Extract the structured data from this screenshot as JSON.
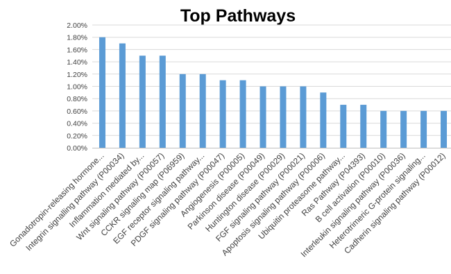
{
  "chart_data": {
    "type": "bar",
    "title": "Top Pathways",
    "xlabel": "",
    "ylabel": "",
    "ylim": [
      0,
      0.02
    ],
    "y_ticks": [
      "0.00%",
      "0.20%",
      "0.40%",
      "0.60%",
      "0.80%",
      "1.00%",
      "1.20%",
      "1.40%",
      "1.60%",
      "1.80%",
      "2.00%"
    ],
    "grid": true,
    "legend": "none",
    "bar_color": "#5b9bd5",
    "categories": [
      "Gonadotropin-releasing hormone...",
      "Integrin signalling pathway (P00034)",
      "Inflammation mediated by...",
      "Wnt signaling pathway (P00057)",
      "CCKR signaling map (P06959)",
      "EGF receptor signaling pathway...",
      "PDGF signaling pathway (P00047)",
      "Angiogenesis (P00005)",
      "Parkinson disease (P00049)",
      "Huntington disease (P00029)",
      "FGF signaling pathway (P00021)",
      "Apoptosis signaling pathway (P00006)",
      "Ubiquitin proteasome pathway...",
      "Ras Pathway (P04393)",
      "B cell activation (P00010)",
      "Interleukin signaling pathway (P00036)",
      "Heterotrimeric G-protein signaling...",
      "Cadherin signaling pathway (P00012)"
    ],
    "values": [
      0.018,
      0.017,
      0.015,
      0.015,
      0.012,
      0.012,
      0.011,
      0.011,
      0.01,
      0.01,
      0.01,
      0.009,
      0.007,
      0.007,
      0.006,
      0.006,
      0.006,
      0.006
    ]
  }
}
